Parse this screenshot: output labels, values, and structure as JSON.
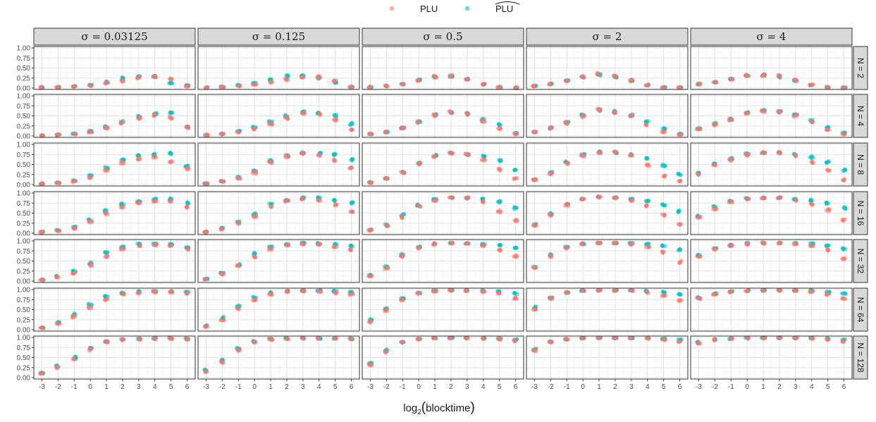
{
  "chart_data": {
    "type": "scatter",
    "facet_cols_label": [
      "σ = 0.03125",
      "σ = 0.125",
      "σ = 0.5",
      "σ = 2",
      "σ = 4"
    ],
    "facet_rows_label": [
      "N = 2",
      "N = 4",
      "N = 8",
      "N = 16",
      "N = 32",
      "N = 64",
      "N = 128"
    ],
    "x_ticks": [
      "-3",
      "-2",
      "-1",
      "0",
      "1",
      "2",
      "3",
      "4",
      "5",
      "6"
    ],
    "y_ticks": [
      "0.00",
      "0.25",
      "0.50",
      "0.75",
      "1.00"
    ],
    "xlim": [
      -3.5,
      6.5
    ],
    "ylim": [
      0,
      1
    ],
    "x": [
      -3,
      -2,
      -1,
      0,
      1,
      2,
      3,
      4,
      5,
      6
    ],
    "xlabel_base": "log",
    "xlabel_sub": "2",
    "xlabel_arg": "blocktime",
    "legend_position": "top",
    "grid": true,
    "series": [
      {
        "name": "PLU",
        "color": "#F8766D"
      },
      {
        "name": "PLU",
        "hat": true,
        "color": "#00BFC4"
      }
    ],
    "values_PLU": [
      [
        [
          0.01,
          0.02,
          0.04,
          0.06,
          0.12,
          0.18,
          0.26,
          0.28,
          0.22,
          0.05
        ],
        [
          0.01,
          0.03,
          0.05,
          0.09,
          0.15,
          0.22,
          0.28,
          0.28,
          0.18,
          0.03
        ],
        [
          0.02,
          0.05,
          0.1,
          0.18,
          0.28,
          0.3,
          0.22,
          0.1,
          0.02,
          0.01
        ],
        [
          0.05,
          0.1,
          0.18,
          0.28,
          0.35,
          0.3,
          0.2,
          0.08,
          0.02,
          0.01
        ],
        [
          0.1,
          0.15,
          0.22,
          0.3,
          0.33,
          0.3,
          0.2,
          0.08,
          0.02,
          0.01
        ]
      ],
      [
        [
          0.01,
          0.03,
          0.05,
          0.1,
          0.2,
          0.33,
          0.45,
          0.52,
          0.45,
          0.22
        ],
        [
          0.02,
          0.05,
          0.1,
          0.18,
          0.3,
          0.45,
          0.58,
          0.55,
          0.4,
          0.15
        ],
        [
          0.05,
          0.1,
          0.2,
          0.35,
          0.52,
          0.6,
          0.55,
          0.38,
          0.18,
          0.05
        ],
        [
          0.1,
          0.2,
          0.33,
          0.5,
          0.65,
          0.6,
          0.5,
          0.28,
          0.1,
          0.03
        ],
        [
          0.18,
          0.28,
          0.4,
          0.55,
          0.62,
          0.6,
          0.5,
          0.35,
          0.15,
          0.05
        ]
      ],
      [
        [
          0.02,
          0.04,
          0.08,
          0.18,
          0.35,
          0.55,
          0.65,
          0.68,
          0.55,
          0.4
        ],
        [
          0.02,
          0.08,
          0.16,
          0.3,
          0.55,
          0.7,
          0.78,
          0.72,
          0.6,
          0.4
        ],
        [
          0.05,
          0.15,
          0.3,
          0.52,
          0.7,
          0.78,
          0.75,
          0.6,
          0.38,
          0.15
        ],
        [
          0.12,
          0.28,
          0.52,
          0.72,
          0.8,
          0.8,
          0.72,
          0.48,
          0.22,
          0.08
        ],
        [
          0.25,
          0.48,
          0.62,
          0.75,
          0.8,
          0.8,
          0.72,
          0.55,
          0.35,
          0.12
        ]
      ],
      [
        [
          0.03,
          0.06,
          0.12,
          0.28,
          0.48,
          0.65,
          0.75,
          0.8,
          0.8,
          0.65
        ],
        [
          0.03,
          0.1,
          0.25,
          0.42,
          0.68,
          0.8,
          0.85,
          0.82,
          0.7,
          0.55
        ],
        [
          0.08,
          0.18,
          0.4,
          0.68,
          0.82,
          0.88,
          0.88,
          0.78,
          0.55,
          0.32
        ],
        [
          0.2,
          0.45,
          0.7,
          0.85,
          0.9,
          0.88,
          0.82,
          0.68,
          0.45,
          0.22
        ],
        [
          0.4,
          0.62,
          0.78,
          0.85,
          0.88,
          0.88,
          0.82,
          0.72,
          0.58,
          0.32
        ]
      ],
      [
        [
          0.03,
          0.1,
          0.2,
          0.4,
          0.62,
          0.8,
          0.88,
          0.9,
          0.88,
          0.8
        ],
        [
          0.05,
          0.18,
          0.38,
          0.6,
          0.8,
          0.9,
          0.92,
          0.92,
          0.85,
          0.78
        ],
        [
          0.12,
          0.32,
          0.62,
          0.82,
          0.92,
          0.95,
          0.93,
          0.88,
          0.78,
          0.62
        ],
        [
          0.32,
          0.62,
          0.82,
          0.92,
          0.95,
          0.95,
          0.92,
          0.85,
          0.72,
          0.48
        ],
        [
          0.6,
          0.8,
          0.88,
          0.92,
          0.95,
          0.95,
          0.92,
          0.88,
          0.78,
          0.55
        ]
      ],
      [
        [
          0.05,
          0.15,
          0.32,
          0.55,
          0.75,
          0.88,
          0.92,
          0.94,
          0.94,
          0.9
        ],
        [
          0.08,
          0.25,
          0.52,
          0.75,
          0.88,
          0.95,
          0.96,
          0.95,
          0.92,
          0.88
        ],
        [
          0.2,
          0.48,
          0.75,
          0.9,
          0.96,
          0.98,
          0.97,
          0.95,
          0.9,
          0.78
        ],
        [
          0.5,
          0.78,
          0.92,
          0.97,
          0.98,
          0.98,
          0.97,
          0.93,
          0.85,
          0.72
        ],
        [
          0.78,
          0.88,
          0.94,
          0.97,
          0.98,
          0.98,
          0.97,
          0.95,
          0.88,
          0.78
        ]
      ],
      [
        [
          0.1,
          0.25,
          0.45,
          0.7,
          0.88,
          0.94,
          0.96,
          0.97,
          0.97,
          0.96
        ],
        [
          0.15,
          0.38,
          0.68,
          0.88,
          0.95,
          0.97,
          0.98,
          0.98,
          0.97,
          0.96
        ],
        [
          0.32,
          0.65,
          0.88,
          0.96,
          0.98,
          0.99,
          0.99,
          0.98,
          0.96,
          0.92
        ],
        [
          0.68,
          0.88,
          0.96,
          0.98,
          0.99,
          0.99,
          0.99,
          0.98,
          0.95,
          0.9
        ],
        [
          0.86,
          0.94,
          0.97,
          0.99,
          0.99,
          0.99,
          0.99,
          0.98,
          0.95,
          0.9
        ]
      ]
    ],
    "values_PLU_hat": [
      [
        [
          0.01,
          0.02,
          0.04,
          0.08,
          0.15,
          0.25,
          0.3,
          0.28,
          0.12,
          0.06
        ],
        [
          0.01,
          0.03,
          0.06,
          0.12,
          0.2,
          0.3,
          0.32,
          0.26,
          0.14,
          0.02
        ],
        [
          0.02,
          0.05,
          0.1,
          0.2,
          0.28,
          0.3,
          0.22,
          0.1,
          0.02,
          0.01
        ],
        [
          0.05,
          0.1,
          0.18,
          0.28,
          0.33,
          0.28,
          0.18,
          0.08,
          0.02,
          0.01
        ],
        [
          0.1,
          0.15,
          0.22,
          0.32,
          0.32,
          0.28,
          0.18,
          0.08,
          0.02,
          0.01
        ]
      ],
      [
        [
          0.01,
          0.03,
          0.05,
          0.12,
          0.22,
          0.35,
          0.48,
          0.55,
          0.58,
          0.22
        ],
        [
          0.02,
          0.05,
          0.12,
          0.22,
          0.35,
          0.5,
          0.6,
          0.58,
          0.5,
          0.3
        ],
        [
          0.05,
          0.1,
          0.2,
          0.35,
          0.52,
          0.58,
          0.55,
          0.42,
          0.28,
          0.08
        ],
        [
          0.1,
          0.2,
          0.33,
          0.52,
          0.65,
          0.6,
          0.52,
          0.35,
          0.18,
          0.05
        ],
        [
          0.18,
          0.3,
          0.42,
          0.58,
          0.63,
          0.6,
          0.52,
          0.38,
          0.22,
          0.08
        ]
      ],
      [
        [
          0.02,
          0.05,
          0.1,
          0.22,
          0.42,
          0.6,
          0.72,
          0.75,
          0.78,
          0.45
        ],
        [
          0.02,
          0.08,
          0.18,
          0.35,
          0.6,
          0.72,
          0.8,
          0.78,
          0.75,
          0.62
        ],
        [
          0.05,
          0.15,
          0.3,
          0.55,
          0.72,
          0.78,
          0.75,
          0.72,
          0.6,
          0.38
        ],
        [
          0.12,
          0.3,
          0.55,
          0.75,
          0.82,
          0.8,
          0.75,
          0.65,
          0.48,
          0.25
        ],
        [
          0.28,
          0.52,
          0.65,
          0.78,
          0.8,
          0.8,
          0.75,
          0.68,
          0.55,
          0.35
        ]
      ],
      [
        [
          0.03,
          0.07,
          0.15,
          0.32,
          0.55,
          0.72,
          0.8,
          0.85,
          0.85,
          0.75
        ],
        [
          0.03,
          0.12,
          0.28,
          0.48,
          0.72,
          0.82,
          0.88,
          0.88,
          0.82,
          0.75
        ],
        [
          0.08,
          0.2,
          0.45,
          0.7,
          0.85,
          0.88,
          0.88,
          0.85,
          0.78,
          0.62
        ],
        [
          0.22,
          0.48,
          0.72,
          0.85,
          0.9,
          0.88,
          0.85,
          0.8,
          0.7,
          0.55
        ],
        [
          0.42,
          0.65,
          0.8,
          0.87,
          0.88,
          0.88,
          0.85,
          0.82,
          0.75,
          0.62
        ]
      ],
      [
        [
          0.03,
          0.12,
          0.25,
          0.45,
          0.7,
          0.85,
          0.92,
          0.93,
          0.92,
          0.85
        ],
        [
          0.06,
          0.2,
          0.42,
          0.68,
          0.85,
          0.92,
          0.95,
          0.94,
          0.92,
          0.88
        ],
        [
          0.15,
          0.35,
          0.65,
          0.85,
          0.93,
          0.95,
          0.94,
          0.92,
          0.9,
          0.82
        ],
        [
          0.35,
          0.65,
          0.85,
          0.93,
          0.95,
          0.95,
          0.94,
          0.92,
          0.88,
          0.78
        ],
        [
          0.65,
          0.82,
          0.9,
          0.94,
          0.95,
          0.95,
          0.94,
          0.93,
          0.88,
          0.8
        ]
      ],
      [
        [
          0.05,
          0.18,
          0.38,
          0.62,
          0.82,
          0.92,
          0.95,
          0.96,
          0.96,
          0.94
        ],
        [
          0.1,
          0.3,
          0.58,
          0.8,
          0.92,
          0.96,
          0.97,
          0.97,
          0.96,
          0.94
        ],
        [
          0.25,
          0.52,
          0.78,
          0.92,
          0.97,
          0.98,
          0.98,
          0.97,
          0.95,
          0.9
        ],
        [
          0.55,
          0.8,
          0.93,
          0.97,
          0.98,
          0.98,
          0.98,
          0.97,
          0.94,
          0.88
        ],
        [
          0.8,
          0.9,
          0.95,
          0.97,
          0.98,
          0.98,
          0.98,
          0.97,
          0.94,
          0.9
        ]
      ],
      [
        [
          0.12,
          0.28,
          0.5,
          0.75,
          0.9,
          0.95,
          0.97,
          0.98,
          0.98,
          0.97
        ],
        [
          0.18,
          0.42,
          0.72,
          0.9,
          0.96,
          0.98,
          0.98,
          0.98,
          0.98,
          0.97
        ],
        [
          0.35,
          0.68,
          0.88,
          0.96,
          0.98,
          0.99,
          0.99,
          0.98,
          0.97,
          0.95
        ],
        [
          0.7,
          0.9,
          0.96,
          0.98,
          0.99,
          0.99,
          0.99,
          0.98,
          0.97,
          0.94
        ],
        [
          0.88,
          0.95,
          0.97,
          0.99,
          0.99,
          0.99,
          0.99,
          0.98,
          0.97,
          0.94
        ]
      ]
    ]
  }
}
